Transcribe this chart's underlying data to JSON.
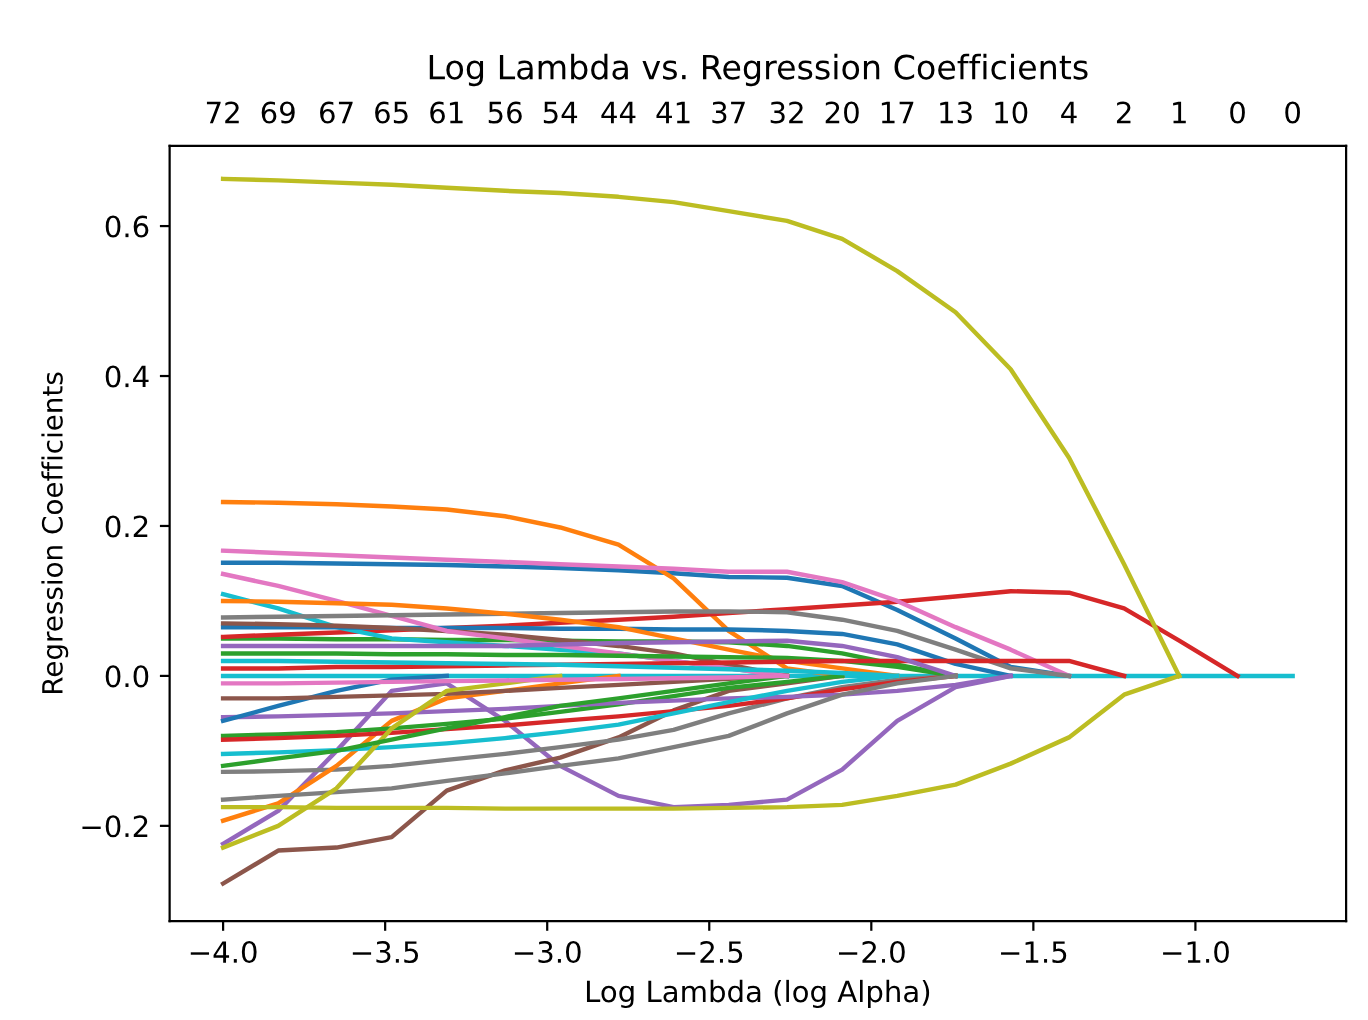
{
  "chart_data": {
    "type": "line",
    "title": "Log Lambda vs. Regression Coefficients",
    "xlabel": "Log Lambda (log Alpha)",
    "ylabel": "Regression Coefficients",
    "x": [
      -4,
      -3.83,
      -3.65,
      -3.48,
      -3.31,
      -3.13,
      -2.96,
      -2.78,
      -2.61,
      -2.44,
      -2.26,
      -2.09,
      -1.92,
      -1.74,
      -1.57,
      -1.39,
      -1.22,
      -1.05,
      -0.87,
      -0.7
    ],
    "xlim": [
      -4.165,
      -0.535
    ],
    "xticks": [
      {
        "value": -4.0,
        "label": "−4.0"
      },
      {
        "value": -3.5,
        "label": "−3.5"
      },
      {
        "value": -3.0,
        "label": "−3.0"
      },
      {
        "value": -2.5,
        "label": "−2.5"
      },
      {
        "value": -2.0,
        "label": "−2.0"
      },
      {
        "value": -1.5,
        "label": "−1.5"
      },
      {
        "value": -1.0,
        "label": "−1.0"
      }
    ],
    "ylim": [
      -0.327,
      0.707
    ],
    "yticks": [
      {
        "value": -0.2,
        "label": "−0.2"
      },
      {
        "value": 0.0,
        "label": "0.0"
      },
      {
        "value": 0.2,
        "label": "0.2"
      },
      {
        "value": 0.4,
        "label": "0.4"
      },
      {
        "value": 0.6,
        "label": "0.6"
      }
    ],
    "annotations": [
      "72",
      "69",
      "67",
      "65",
      "61",
      "56",
      "54",
      "44",
      "41",
      "37",
      "32",
      "20",
      "17",
      "13",
      "10",
      "4",
      "2",
      "1",
      "0",
      "0"
    ],
    "grid": false,
    "marker": "none",
    "line_style": "solid",
    "series": [
      {
        "color": "#1f77b4",
        "values": [
          0.151,
          0.151,
          0.15,
          0.149,
          0.148,
          0.146,
          0.144,
          0.141,
          0.137,
          0.132,
          0.131,
          0.12,
          0.088,
          0.05,
          0.012,
          0,
          null,
          null,
          null,
          null
        ]
      },
      {
        "color": "#ff7f0e",
        "values": [
          0.232,
          0.231,
          0.229,
          0.226,
          0.222,
          0.213,
          0.198,
          0.175,
          0.13,
          0.06,
          0.01,
          0,
          null,
          null,
          null,
          null,
          null,
          null,
          null,
          null
        ]
      },
      {
        "color": "#2ca02c",
        "values": [
          0.05,
          0.05,
          0.049,
          0.049,
          0.048,
          0.048,
          0.047,
          0.046,
          0.046,
          0.045,
          0.04,
          0.03,
          0.015,
          0,
          null,
          null,
          null,
          null,
          null,
          null
        ]
      },
      {
        "color": "#d62728",
        "values": [
          0.052,
          0.055,
          0.058,
          0.061,
          0.064,
          0.067,
          0.071,
          0.075,
          0.079,
          0.084,
          0.089,
          0.094,
          0.099,
          0.106,
          0.113,
          0.111,
          0.09,
          0.047,
          0,
          null
        ]
      },
      {
        "color": "#9467bd",
        "values": [
          -0.224,
          -0.18,
          -0.1,
          -0.02,
          -0.01,
          -0.06,
          -0.12,
          -0.16,
          -0.175,
          -0.172,
          -0.165,
          -0.125,
          -0.06,
          -0.015,
          0,
          null,
          null,
          null,
          null,
          null
        ]
      },
      {
        "color": "#8c564b",
        "values": [
          -0.277,
          -0.233,
          -0.229,
          -0.215,
          -0.153,
          -0.126,
          -0.109,
          -0.082,
          -0.046,
          -0.02,
          -0.01,
          0,
          null,
          null,
          null,
          null,
          null,
          null,
          null,
          null
        ]
      },
      {
        "color": "#e377c2",
        "values": [
          0.167,
          0.164,
          0.161,
          0.158,
          0.155,
          0.152,
          0.149,
          0.146,
          0.143,
          0.139,
          0.139,
          0.125,
          0.1,
          0.065,
          0.035,
          0,
          null,
          null,
          null,
          null
        ]
      },
      {
        "color": "#7f7f7f",
        "values": [
          -0.128,
          -0.127,
          -0.125,
          -0.12,
          -0.112,
          -0.104,
          -0.095,
          -0.085,
          -0.072,
          -0.05,
          -0.03,
          -0.015,
          -0.005,
          0,
          null,
          null,
          null,
          null,
          null,
          null
        ]
      },
      {
        "color": "#bcbd22",
        "values": [
          0.663,
          0.661,
          0.658,
          0.655,
          0.651,
          0.647,
          0.644,
          0.639,
          0.632,
          0.62,
          0.607,
          0.583,
          0.54,
          0.485,
          0.409,
          0.291,
          0.149,
          0,
          null,
          null
        ]
      },
      {
        "color": "#17becf",
        "values": [
          0.109,
          0.09,
          0.065,
          0.05,
          0.045,
          0.04,
          0.035,
          0.03,
          0.02,
          0.01,
          0,
          null,
          null,
          null,
          null,
          null,
          null,
          null,
          null,
          null
        ]
      },
      {
        "color": "#1f77b4",
        "values": [
          0.065,
          0.065,
          0.065,
          0.064,
          0.064,
          0.064,
          0.063,
          0.063,
          0.062,
          0.062,
          0.06,
          0.056,
          0.042,
          0.016,
          0,
          null,
          null,
          null,
          null,
          null
        ]
      },
      {
        "color": "#ff7f0e",
        "values": [
          -0.193,
          -0.17,
          -0.12,
          -0.06,
          -0.03,
          -0.02,
          -0.01,
          0,
          null,
          null,
          null,
          null,
          null,
          null,
          null,
          null,
          null,
          null,
          null,
          null
        ]
      },
      {
        "color": "#2ca02c",
        "values": [
          -0.08,
          -0.078,
          -0.075,
          -0.07,
          -0.064,
          -0.057,
          -0.048,
          -0.038,
          -0.027,
          -0.016,
          -0.008,
          0,
          null,
          null,
          null,
          null,
          null,
          null,
          null,
          null
        ]
      },
      {
        "color": "#d62728",
        "values": [
          -0.085,
          -0.083,
          -0.08,
          -0.076,
          -0.071,
          -0.066,
          -0.06,
          -0.054,
          -0.047,
          -0.04,
          -0.03,
          -0.018,
          -0.008,
          0,
          null,
          null,
          null,
          null,
          null,
          null
        ]
      },
      {
        "color": "#9467bd",
        "values": [
          -0.055,
          -0.054,
          -0.052,
          -0.05,
          -0.047,
          -0.044,
          -0.04,
          -0.036,
          -0.033,
          -0.03,
          -0.028,
          -0.025,
          -0.02,
          -0.012,
          0,
          null,
          null,
          null,
          null,
          null
        ]
      },
      {
        "color": "#8c564b",
        "values": [
          0.07,
          0.069,
          0.067,
          0.064,
          0.06,
          0.055,
          0.048,
          0.04,
          0.03,
          0.015,
          0,
          null,
          null,
          null,
          null,
          null,
          null,
          null,
          null,
          null
        ]
      },
      {
        "color": "#e377c2",
        "values": [
          0.136,
          0.12,
          0.1,
          0.08,
          0.06,
          0.05,
          0.04,
          0.03,
          0.02,
          0.01,
          0,
          null,
          null,
          null,
          null,
          null,
          null,
          null,
          null,
          null
        ]
      },
      {
        "color": "#7f7f7f",
        "values": [
          0.078,
          0.079,
          0.08,
          0.081,
          0.082,
          0.083,
          0.084,
          0.085,
          0.086,
          0.086,
          0.085,
          0.075,
          0.06,
          0.035,
          0.01,
          0,
          null,
          null,
          null,
          null
        ]
      },
      {
        "color": "#bcbd22",
        "values": [
          -0.175,
          -0.175,
          -0.176,
          -0.176,
          -0.176,
          -0.177,
          -0.177,
          -0.177,
          -0.177,
          -0.176,
          -0.175,
          -0.172,
          -0.16,
          -0.145,
          -0.117,
          -0.082,
          -0.025,
          0,
          null,
          null
        ]
      },
      {
        "color": "#17becf",
        "values": [
          -0.104,
          -0.102,
          -0.099,
          -0.095,
          -0.09,
          -0.083,
          -0.075,
          -0.065,
          -0.05,
          -0.035,
          -0.02,
          -0.008,
          0,
          null,
          null,
          null,
          null,
          null,
          null,
          null
        ]
      },
      {
        "color": "#1f77b4",
        "values": [
          -0.06,
          -0.04,
          -0.02,
          -0.005,
          0,
          null,
          null,
          null,
          null,
          null,
          null,
          null,
          null,
          null,
          null,
          null,
          null,
          null,
          null,
          null
        ]
      },
      {
        "color": "#ff7f0e",
        "values": [
          0.1,
          0.099,
          0.097,
          0.095,
          0.09,
          0.083,
          0.075,
          0.065,
          0.05,
          0.035,
          0.02,
          0.01,
          0,
          null,
          null,
          null,
          null,
          null,
          null,
          null
        ]
      },
      {
        "color": "#2ca02c",
        "values": [
          0.03,
          0.03,
          0.03,
          0.029,
          0.029,
          0.028,
          0.028,
          0.027,
          0.026,
          0.025,
          0.024,
          0.02,
          0.012,
          0,
          null,
          null,
          null,
          null,
          null,
          null
        ]
      },
      {
        "color": "#d62728",
        "values": [
          0.01,
          0.01,
          0.012,
          0.012,
          0.013,
          0.014,
          0.015,
          0.016,
          0.017,
          0.018,
          0.019,
          0.02,
          0.02,
          0.02,
          0.02,
          0.02,
          0,
          null,
          null,
          null
        ]
      },
      {
        "color": "#9467bd",
        "values": [
          0.04,
          0.04,
          0.04,
          0.04,
          0.04,
          0.04,
          0.042,
          0.044,
          0.045,
          0.046,
          0.047,
          0.04,
          0.025,
          0,
          null,
          null,
          null,
          null,
          null,
          null
        ]
      },
      {
        "color": "#8c564b",
        "values": [
          -0.03,
          -0.03,
          -0.028,
          -0.026,
          -0.024,
          -0.02,
          -0.016,
          -0.012,
          -0.008,
          -0.004,
          0,
          null,
          null,
          null,
          null,
          null,
          null,
          null,
          null,
          null
        ]
      },
      {
        "color": "#7f7f7f",
        "values": [
          -0.165,
          -0.16,
          -0.155,
          -0.15,
          -0.14,
          -0.13,
          -0.12,
          -0.11,
          -0.095,
          -0.08,
          -0.05,
          -0.025,
          -0.01,
          0,
          null,
          null,
          null,
          null,
          null,
          null
        ]
      },
      {
        "color": "#bcbd22",
        "values": [
          -0.229,
          -0.2,
          -0.15,
          -0.07,
          -0.02,
          -0.01,
          0,
          null,
          null,
          null,
          null,
          null,
          null,
          null,
          null,
          null,
          null,
          null,
          null,
          null
        ]
      },
      {
        "color": "#17becf",
        "values": [
          0.02,
          0.02,
          0.019,
          0.018,
          0.017,
          0.016,
          0.015,
          0.013,
          0.011,
          0.009,
          0.007,
          0.004,
          0,
          null,
          null,
          null,
          null,
          null,
          null,
          null
        ]
      },
      {
        "color": "#2ca02c",
        "values": [
          -0.12,
          -0.11,
          -0.1,
          -0.085,
          -0.07,
          -0.055,
          -0.04,
          -0.03,
          -0.02,
          -0.01,
          0,
          null,
          null,
          null,
          null,
          null,
          null,
          null,
          null,
          null
        ]
      },
      {
        "color": "#e377c2",
        "values": [
          -0.01,
          -0.01,
          -0.009,
          -0.008,
          -0.007,
          -0.006,
          -0.005,
          -0.004,
          -0.003,
          -0.002,
          0,
          null,
          null,
          null,
          null,
          null,
          null,
          null,
          null,
          null
        ]
      },
      {
        "color": "#17becf",
        "values": [
          0,
          0,
          0,
          0,
          0,
          0,
          0,
          0,
          0,
          0,
          0,
          0,
          0,
          0,
          0,
          0,
          0,
          0,
          0,
          0
        ]
      }
    ]
  }
}
